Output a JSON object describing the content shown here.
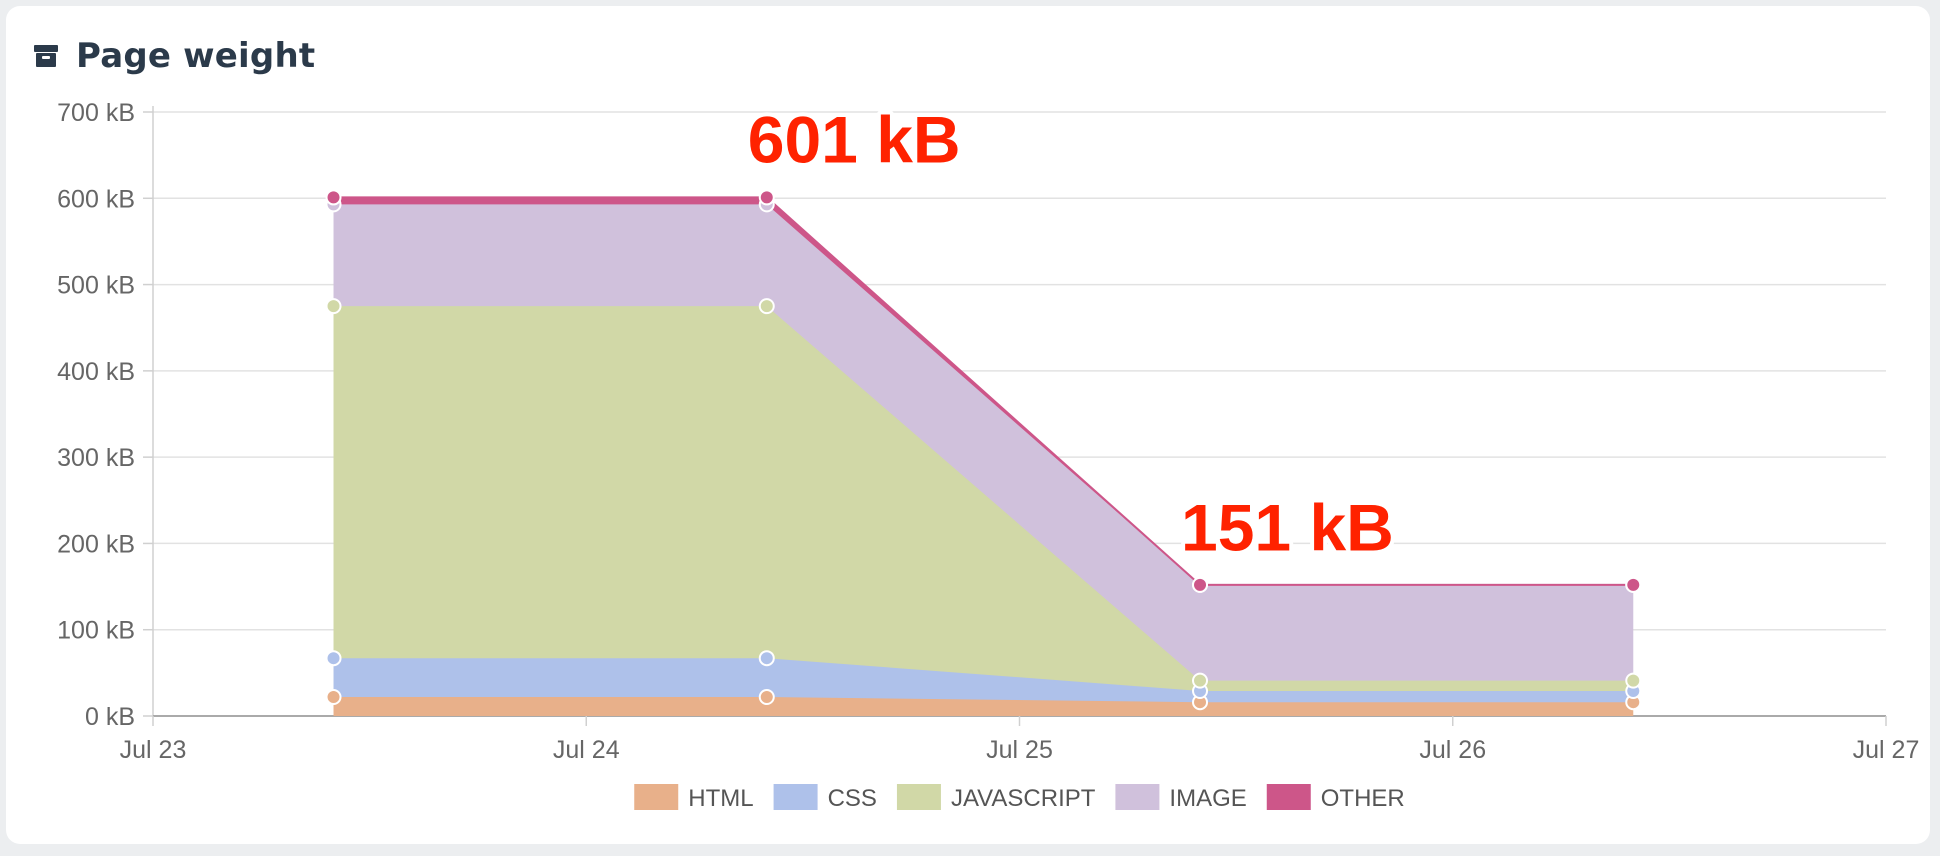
{
  "header": {
    "title": "Page weight",
    "icon": "archive-icon"
  },
  "chart_data": {
    "type": "area",
    "stacked": true,
    "x": [
      "Jul 23 10:00",
      "Jul 24 10:00",
      "Jul 25 10:00",
      "Jul 26 10:00"
    ],
    "xlim": [
      "Jul 23",
      "Jul 27"
    ],
    "x_ticks": [
      "Jul 23",
      "Jul 24",
      "Jul 25",
      "Jul 26",
      "Jul 27"
    ],
    "ylim": [
      0,
      700
    ],
    "y_ticks": [
      "0 kB",
      "100 kB",
      "200 kB",
      "300 kB",
      "400 kB",
      "500 kB",
      "600 kB",
      "700 kB"
    ],
    "y_unit": "kB",
    "grid": true,
    "legend_position": "bottom",
    "series": [
      {
        "name": "HTML",
        "color": "#e8b08a",
        "values": [
          22,
          22,
          16,
          16
        ]
      },
      {
        "name": "CSS",
        "color": "#aec1ea",
        "values": [
          45,
          45,
          13,
          13
        ]
      },
      {
        "name": "JAVASCRIPT",
        "color": "#d1d8a7",
        "values": [
          408,
          408,
          12,
          12
        ]
      },
      {
        "name": "IMAGE",
        "color": "#d0c1dc",
        "values": [
          118,
          118,
          111,
          111
        ]
      },
      {
        "name": "OTHER",
        "color": "#cd5689",
        "values": [
          8,
          8,
          0,
          0
        ]
      }
    ],
    "annotations": [
      {
        "text": "601 kB",
        "x": "Jul 24 10:00",
        "y": 601
      },
      {
        "text": "151 kB",
        "x": "Jul 25 10:00",
        "y": 151
      }
    ]
  }
}
